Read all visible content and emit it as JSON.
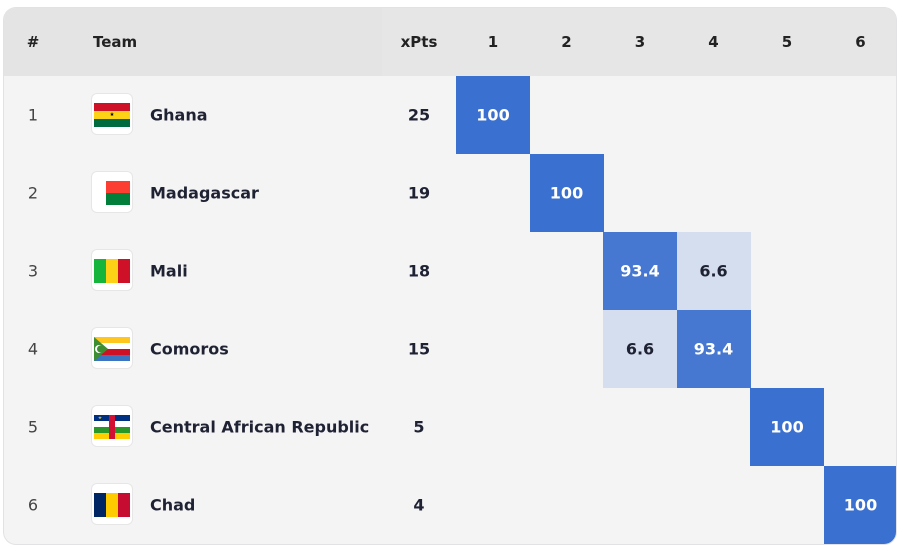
{
  "table": {
    "header": [
      "#",
      "Team",
      "xPts",
      "1",
      "2",
      "3",
      "4",
      "5",
      "6"
    ],
    "rows": [
      {
        "rank": 1,
        "team": "Ghana",
        "xpts": 25,
        "probs": [
          100,
          null,
          null,
          null,
          null,
          null
        ]
      },
      {
        "rank": 2,
        "team": "Madagascar",
        "xpts": 19,
        "probs": [
          null,
          100,
          null,
          null,
          null,
          null
        ]
      },
      {
        "rank": 3,
        "team": "Mali",
        "xpts": 18,
        "probs": [
          null,
          null,
          93.4,
          6.6,
          null,
          null
        ]
      },
      {
        "rank": 4,
        "team": "Comoros",
        "xpts": 15,
        "probs": [
          null,
          null,
          6.6,
          93.4,
          null,
          null
        ]
      },
      {
        "rank": 5,
        "team": "Central African Republic",
        "xpts": 5,
        "probs": [
          null,
          null,
          null,
          null,
          100,
          null
        ]
      },
      {
        "rank": 6,
        "team": "Chad",
        "xpts": 4,
        "probs": [
          null,
          null,
          null,
          null,
          null,
          100
        ]
      }
    ]
  }
}
